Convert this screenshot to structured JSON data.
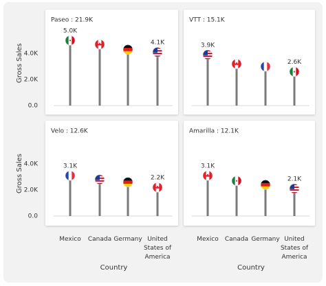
{
  "chart_data": {
    "type": "lollipop",
    "y_label": "Gross Sales",
    "x_label": "Country",
    "categories": [
      "Mexico",
      "Canada",
      "Germany",
      "United States of America"
    ],
    "ylim": [
      0,
      5600
    ],
    "yticks": [
      {
        "value": 0,
        "label": "0.0"
      },
      {
        "value": 2000,
        "label": "2.0K"
      },
      {
        "value": 4000,
        "label": "4.0K"
      }
    ],
    "color": "#7a7a7a",
    "series": [
      {
        "name": "Paseo : 21.9K",
        "values": [
          5000,
          4700,
          4300,
          4100
        ],
        "value_labels": [
          "5.0K",
          null,
          null,
          "4.1K"
        ]
      },
      {
        "name": "VTT : 15.1K",
        "values": [
          3900,
          3200,
          3000,
          2600
        ],
        "value_labels": [
          "3.9K",
          null,
          null,
          "2.6K"
        ]
      },
      {
        "name": "Velo : 12.6K",
        "values": [
          3100,
          2800,
          2600,
          2200
        ],
        "value_labels": [
          "3.1K",
          null,
          null,
          "2.2K"
        ]
      },
      {
        "name": "Amarilla : 12.1K",
        "values": [
          3100,
          2700,
          2400,
          2100
        ],
        "value_labels": [
          "3.1K",
          null,
          null,
          "2.1K"
        ]
      }
    ]
  }
}
